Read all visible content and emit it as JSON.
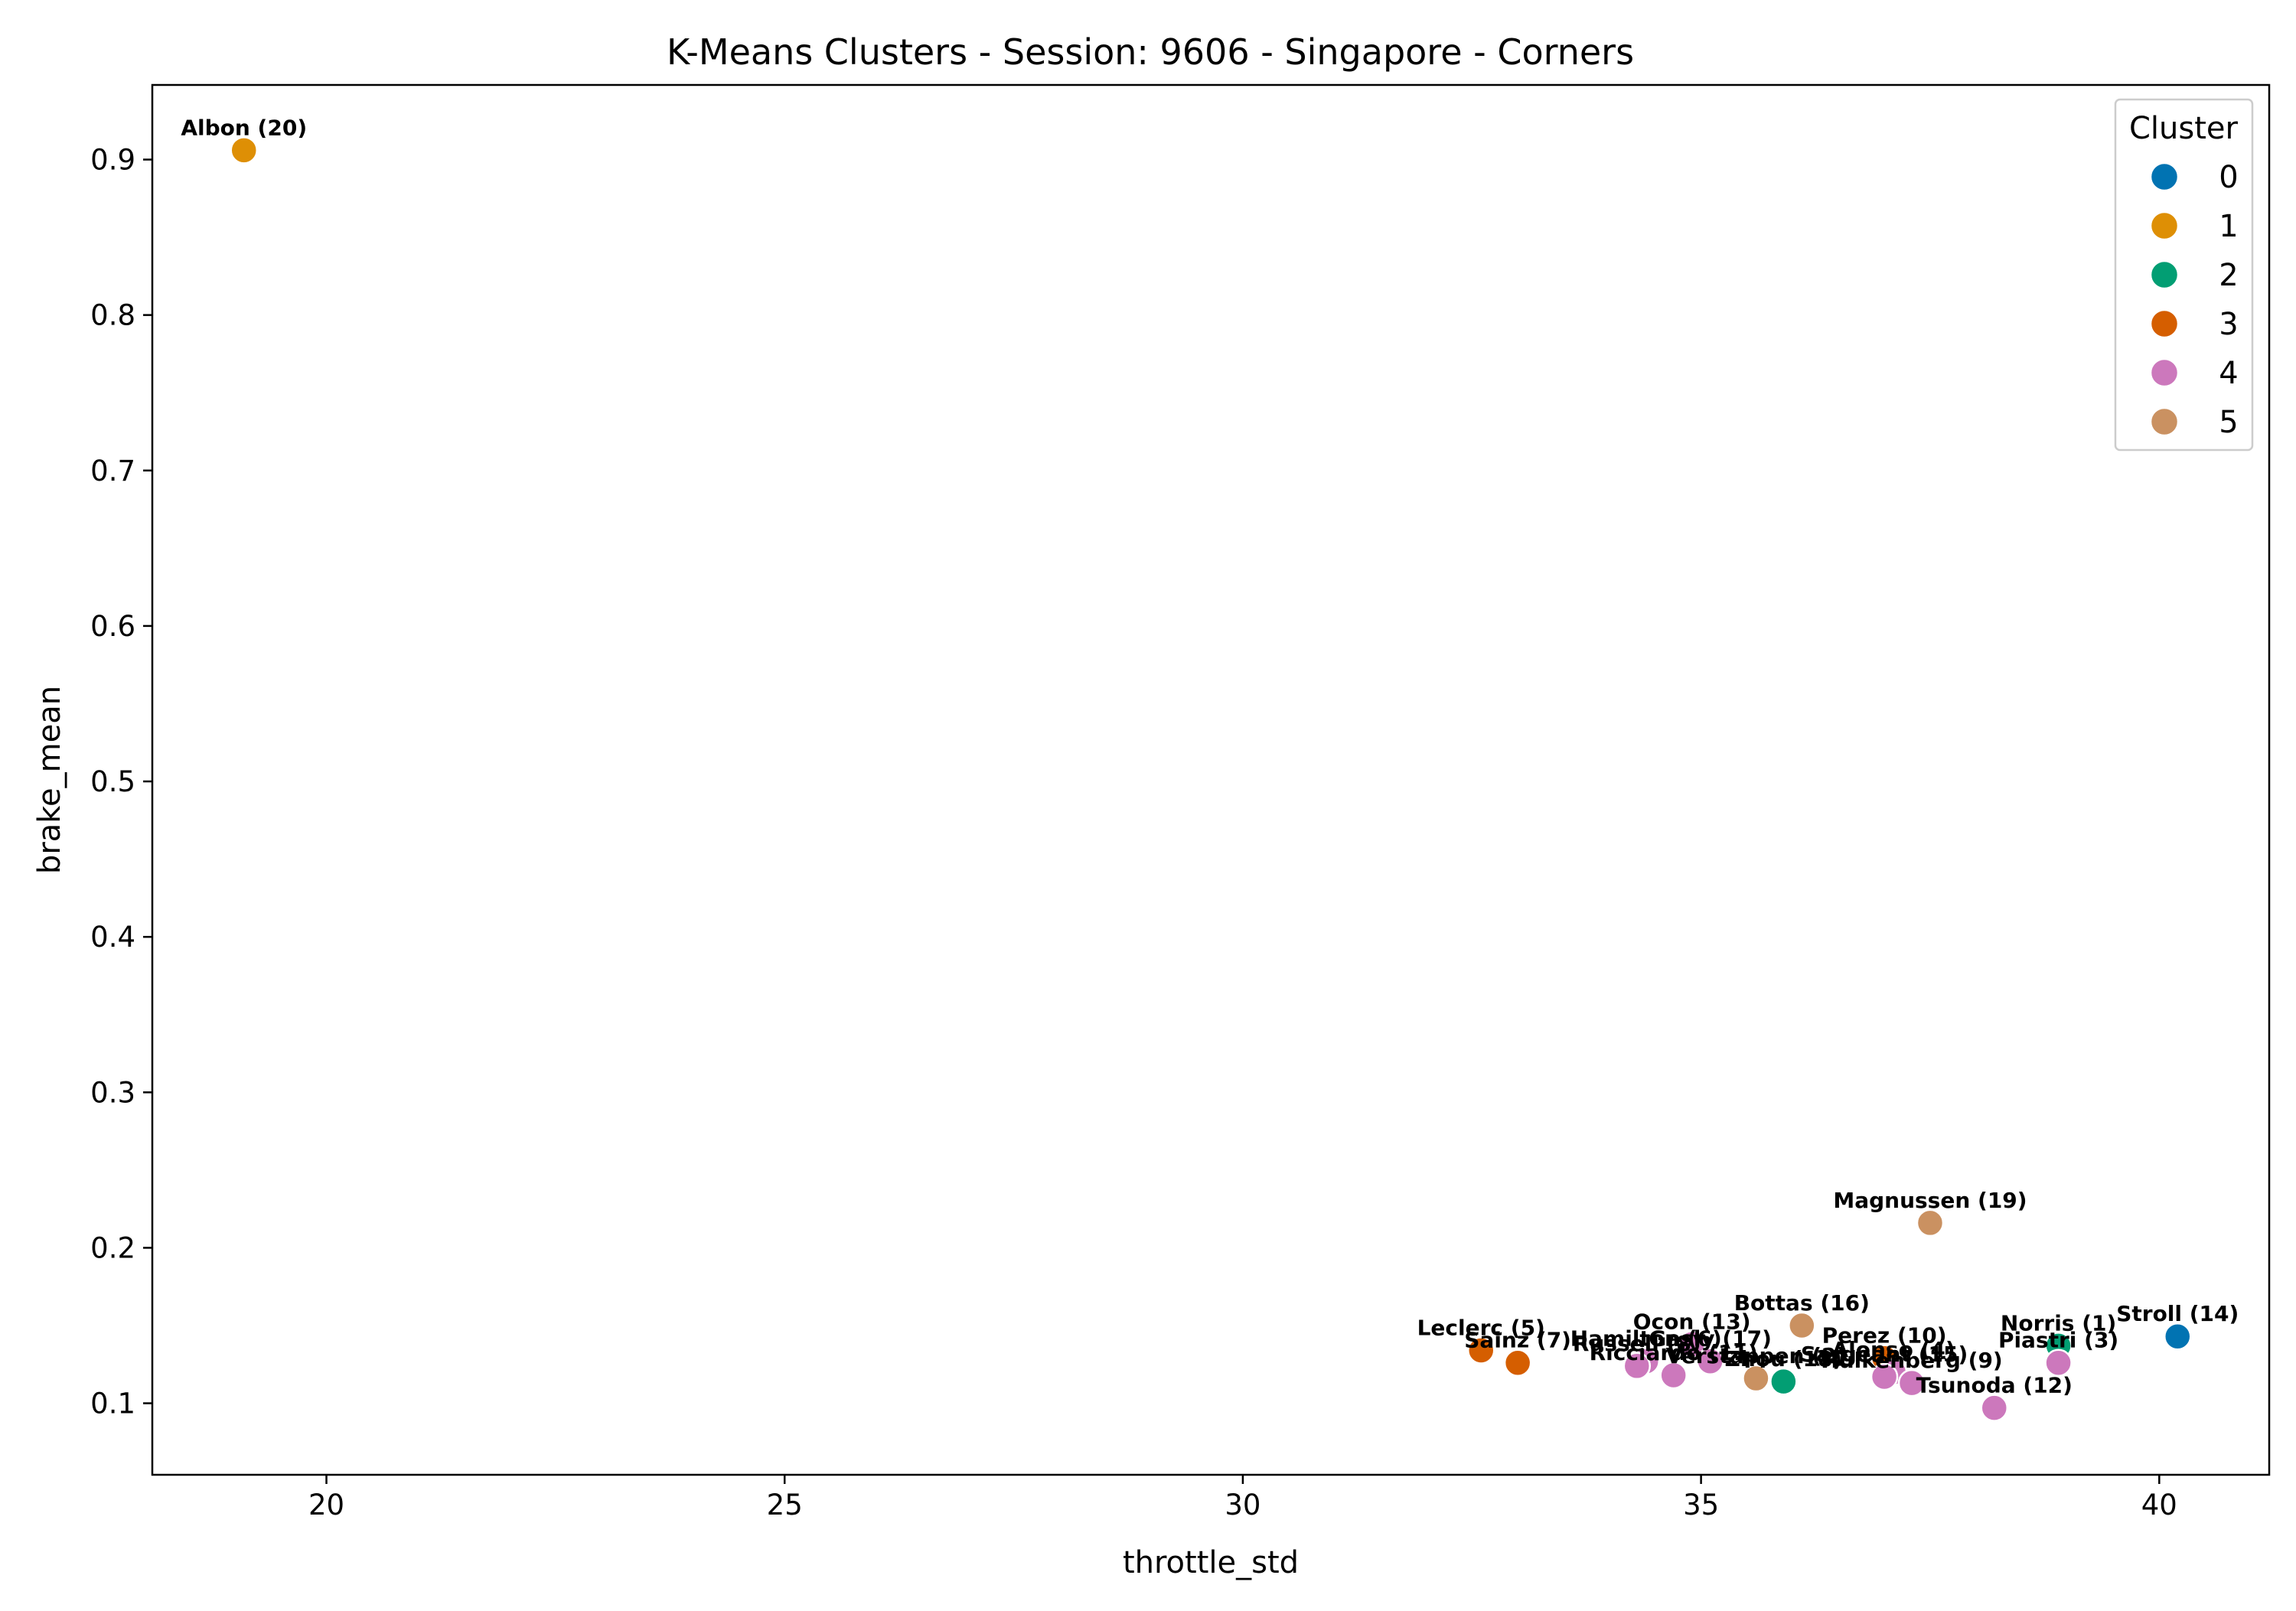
{
  "chart_data": {
    "type": "scatter",
    "title": "K-Means Clusters - Session: 9606 - Singapore - Corners",
    "xlabel": "throttle_std",
    "ylabel": "brake_mean",
    "xlim": [
      18.1,
      41.2
    ],
    "ylim": [
      0.054,
      0.948
    ],
    "x_ticks": [
      20,
      25,
      30,
      35,
      40
    ],
    "y_ticks": [
      0.1,
      0.2,
      0.3,
      0.4,
      0.5,
      0.6,
      0.7,
      0.8,
      0.9
    ],
    "grid": false,
    "legend": {
      "title": "Cluster",
      "position": "top-right",
      "entries": [
        {
          "label": "0",
          "color": "#0173b2"
        },
        {
          "label": "1",
          "color": "#de8f05"
        },
        {
          "label": "2",
          "color": "#029e73"
        },
        {
          "label": "3",
          "color": "#d55e00"
        },
        {
          "label": "4",
          "color": "#cc78bc"
        },
        {
          "label": "5",
          "color": "#ca9161"
        }
      ]
    },
    "points": [
      {
        "label": "Albon (20)",
        "x": 19.1,
        "y": 0.906,
        "cluster": 1
      },
      {
        "label": "Magnussen (19)",
        "x": 37.5,
        "y": 0.216,
        "cluster": 5
      },
      {
        "label": "Bottas (16)",
        "x": 36.1,
        "y": 0.15,
        "cluster": 5
      },
      {
        "label": "Stroll (14)",
        "x": 40.2,
        "y": 0.143,
        "cluster": 0
      },
      {
        "label": "Norris (1)",
        "x": 38.9,
        "y": 0.137,
        "cluster": 2
      },
      {
        "label": "Piastri (3)",
        "x": 38.9,
        "y": 0.126,
        "cluster": 4
      },
      {
        "label": "Leclerc (5)",
        "x": 32.6,
        "y": 0.134,
        "cluster": 3
      },
      {
        "label": "Sainz (7)",
        "x": 33.0,
        "y": 0.126,
        "cluster": 3
      },
      {
        "label": "Hamilton (6)",
        "x": 34.4,
        "y": 0.127,
        "cluster": 4
      },
      {
        "label": "Ocon (13)",
        "x": 34.9,
        "y": 0.138,
        "cluster": 4
      },
      {
        "label": "Gasly (17)",
        "x": 35.1,
        "y": 0.127,
        "cluster": 4
      },
      {
        "label": "Russell (8)",
        "x": 34.3,
        "y": 0.124,
        "cluster": 4
      },
      {
        "label": "Ricciardo (11)",
        "x": 34.7,
        "y": 0.118,
        "cluster": 4
      },
      {
        "label": "Verstappen (2)",
        "x": 35.6,
        "y": 0.116,
        "cluster": 5
      },
      {
        "label": "Zhou (18)",
        "x": 35.9,
        "y": 0.114,
        "cluster": 2
      },
      {
        "label": "Perez (10)",
        "x": 37.0,
        "y": 0.129,
        "cluster": 3
      },
      {
        "label": "Alonso (4)",
        "x": 37.1,
        "y": 0.12,
        "cluster": 4
      },
      {
        "label": "Sargeant (15)",
        "x": 37.0,
        "y": 0.117,
        "cluster": 4
      },
      {
        "label": "Hulkenberg (9)",
        "x": 37.3,
        "y": 0.113,
        "cluster": 4
      },
      {
        "label": "Tsunoda (12)",
        "x": 38.2,
        "y": 0.097,
        "cluster": 4
      }
    ]
  }
}
